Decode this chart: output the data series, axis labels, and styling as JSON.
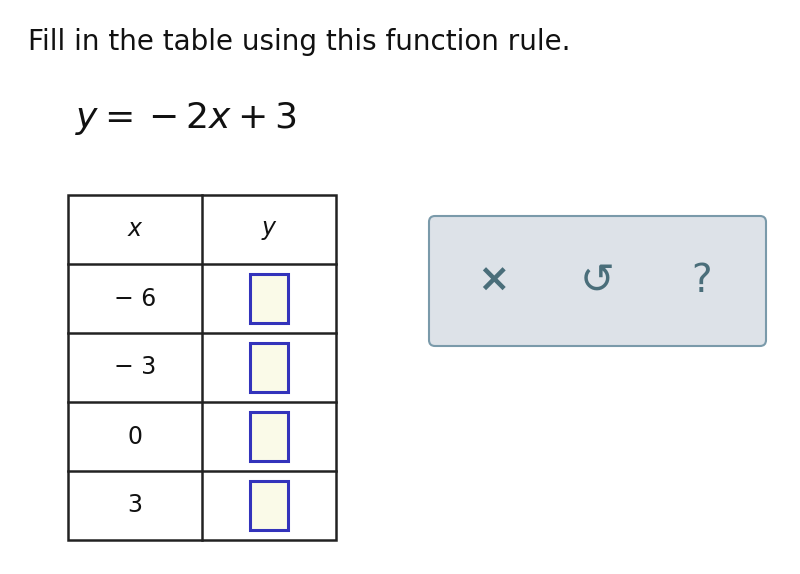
{
  "title": "Fill in the table using this function rule.",
  "bg_color": "#ffffff",
  "title_fontsize": 20,
  "equation_fontsize": 26,
  "x_values": [
    "− 6",
    "− 3",
    "0",
    "3"
  ],
  "input_box_color": "#fafae8",
  "input_box_border_color": "#3333bb",
  "table_border_color": "#222222",
  "panel_bg": "#dde2e8",
  "panel_border": "#7a9aaa",
  "icon_color": "#4a6e7a",
  "icon_fontsize": 26,
  "header_fontsize": 17,
  "xval_fontsize": 17
}
